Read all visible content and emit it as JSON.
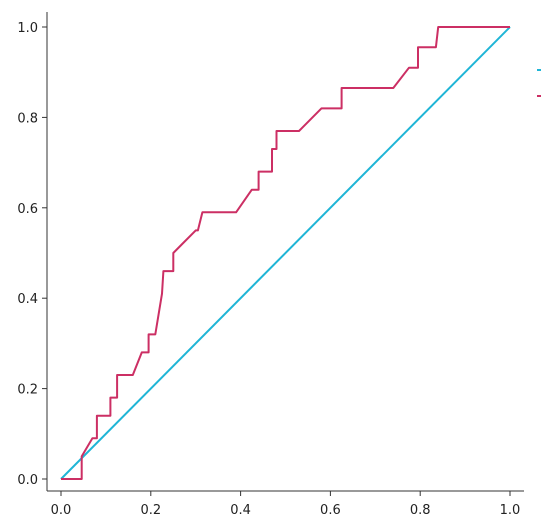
{
  "chart_data": {
    "type": "line",
    "xlim": [
      0.0,
      1.0
    ],
    "ylim": [
      0.0,
      1.0
    ],
    "x_ticks": [
      "0.0",
      "0.2",
      "0.4",
      "0.6",
      "0.8",
      "1.0"
    ],
    "y_ticks": [
      "0.0",
      "0.2",
      "0.4",
      "0.6",
      "0.8",
      "1.0"
    ],
    "grid": false,
    "legend": "right",
    "series": [
      {
        "color": "#1FB5D6",
        "points": [
          [
            0.0,
            0.0
          ],
          [
            1.0,
            1.0
          ]
        ]
      },
      {
        "color": "#CC2F64",
        "points": [
          [
            0.0,
            0.0
          ],
          [
            0.046,
            0.0
          ],
          [
            0.046,
            0.05
          ],
          [
            0.07,
            0.09
          ],
          [
            0.08,
            0.09
          ],
          [
            0.08,
            0.14
          ],
          [
            0.11,
            0.14
          ],
          [
            0.11,
            0.18
          ],
          [
            0.125,
            0.18
          ],
          [
            0.125,
            0.23
          ],
          [
            0.16,
            0.23
          ],
          [
            0.18,
            0.28
          ],
          [
            0.195,
            0.28
          ],
          [
            0.195,
            0.32
          ],
          [
            0.21,
            0.32
          ],
          [
            0.225,
            0.41
          ],
          [
            0.228,
            0.46
          ],
          [
            0.25,
            0.46
          ],
          [
            0.25,
            0.5
          ],
          [
            0.27,
            0.52
          ],
          [
            0.3,
            0.55
          ],
          [
            0.305,
            0.55
          ],
          [
            0.315,
            0.59
          ],
          [
            0.39,
            0.59
          ],
          [
            0.425,
            0.64
          ],
          [
            0.44,
            0.64
          ],
          [
            0.44,
            0.68
          ],
          [
            0.47,
            0.68
          ],
          [
            0.47,
            0.73
          ],
          [
            0.48,
            0.73
          ],
          [
            0.48,
            0.77
          ],
          [
            0.53,
            0.77
          ],
          [
            0.58,
            0.82
          ],
          [
            0.625,
            0.82
          ],
          [
            0.625,
            0.865
          ],
          [
            0.74,
            0.865
          ],
          [
            0.775,
            0.91
          ],
          [
            0.795,
            0.91
          ],
          [
            0.795,
            0.955
          ],
          [
            0.835,
            0.955
          ],
          [
            0.84,
            1.0
          ],
          [
            1.0,
            1.0
          ]
        ]
      }
    ]
  }
}
